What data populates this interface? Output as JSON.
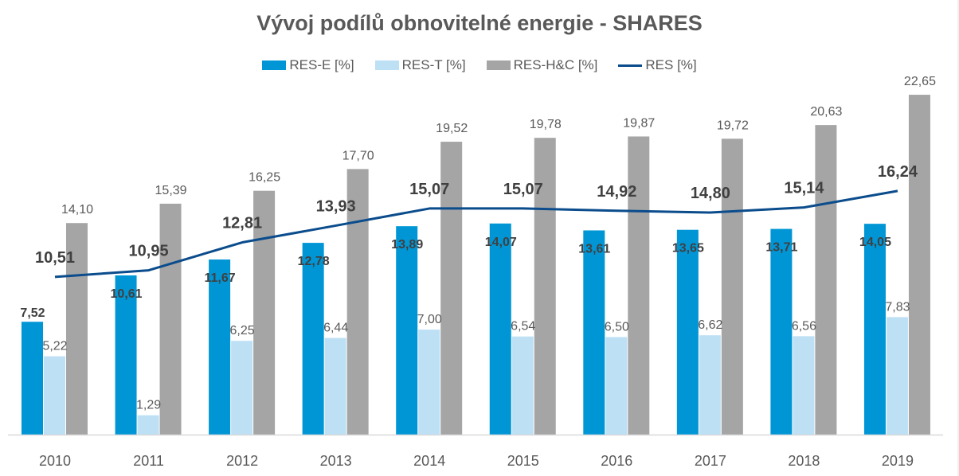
{
  "chart_data": {
    "type": "bar",
    "title": "Vývoj podílů obnovitelné energie - SHARES",
    "xlabel": "",
    "ylabel": "",
    "ylim": [
      0,
      23
    ],
    "grid": false,
    "legend_position": "top-center",
    "categories": [
      "2010",
      "2011",
      "2012",
      "2013",
      "2014",
      "2015",
      "2016",
      "2017",
      "2018",
      "2019"
    ],
    "series": [
      {
        "name": "RES-E [%]",
        "type": "bar",
        "color": "#0096D6",
        "values": [
          7.52,
          10.61,
          11.67,
          12.78,
          13.89,
          14.07,
          13.61,
          13.65,
          13.71,
          14.05
        ],
        "labels": [
          "7,52",
          "10,61",
          "11,67",
          "12,78",
          "13,89",
          "14,07",
          "13,61",
          "13,65",
          "13,71",
          "14,05"
        ]
      },
      {
        "name": "RES-T [%]",
        "type": "bar",
        "color": "#BDE0F5",
        "values": [
          5.22,
          1.29,
          6.25,
          6.44,
          7.0,
          6.54,
          6.5,
          6.62,
          6.56,
          7.83
        ],
        "labels": [
          "5,22",
          "1,29",
          "6,25",
          "6,44",
          "7,00",
          "6,54",
          "6,50",
          "6,62",
          "6,56",
          "7,83"
        ]
      },
      {
        "name": "RES-H&C [%]",
        "type": "bar",
        "color": "#A5A5A5",
        "values": [
          14.1,
          15.39,
          16.25,
          17.7,
          19.52,
          19.78,
          19.87,
          19.72,
          20.63,
          22.65
        ],
        "labels": [
          "14,10",
          "15,39",
          "16,25",
          "17,70",
          "19,52",
          "19,78",
          "19,87",
          "19,72",
          "20,63",
          "22,65"
        ]
      },
      {
        "name": "RES [%]",
        "type": "line",
        "color": "#0B4C8C",
        "values": [
          10.51,
          10.95,
          12.81,
          13.93,
          15.07,
          15.07,
          14.92,
          14.8,
          15.14,
          16.24
        ],
        "labels": [
          "10,51",
          "10,95",
          "12,81",
          "13,93",
          "15,07",
          "15,07",
          "14,92",
          "14,80",
          "15,14",
          "16,24"
        ]
      }
    ]
  }
}
